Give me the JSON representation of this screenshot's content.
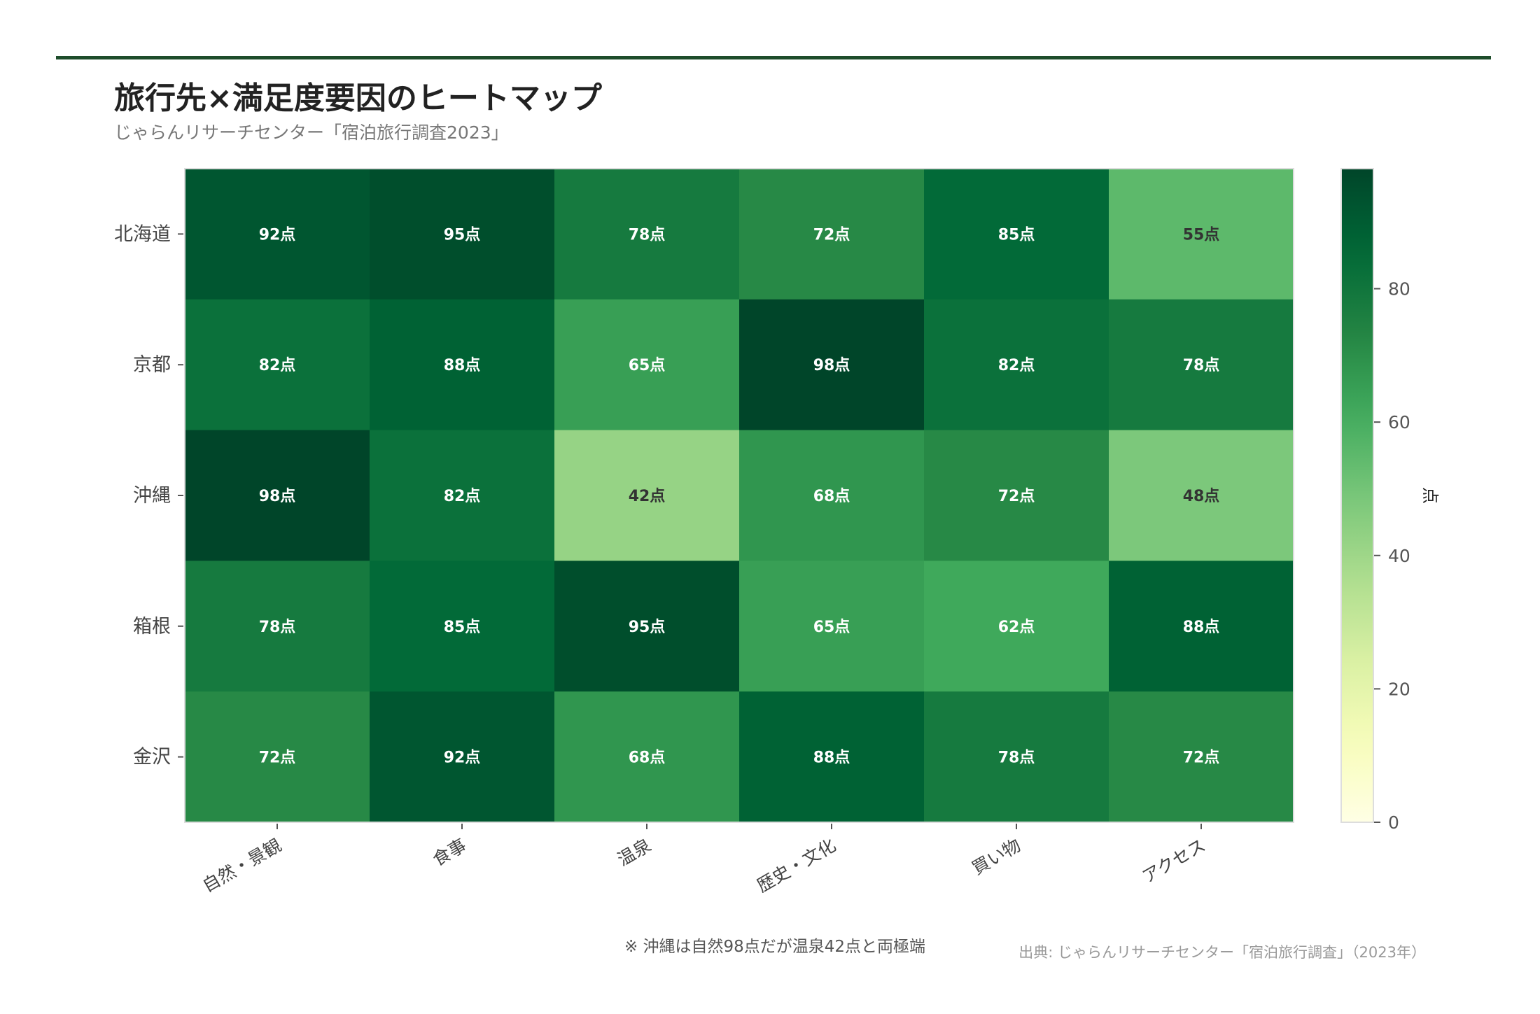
{
  "header": {
    "title": "旅行先×満足度要因のヒートマップ",
    "subtitle": "じゃらんリサーチセンター「宿泊旅行調査2023」"
  },
  "colors": {
    "accent_line": "#1e4d2b",
    "colormap": "YlGn"
  },
  "chart_data": {
    "type": "heatmap",
    "rows": [
      "北海道",
      "京都",
      "沖縄",
      "箱根",
      "金沢"
    ],
    "columns": [
      "自然・景観",
      "食事",
      "温泉",
      "歴史・文化",
      "買い物",
      "アクセス"
    ],
    "values": [
      [
        92,
        95,
        78,
        72,
        85,
        55
      ],
      [
        82,
        88,
        65,
        98,
        82,
        78
      ],
      [
        98,
        82,
        42,
        68,
        72,
        48
      ],
      [
        78,
        85,
        95,
        65,
        62,
        88
      ],
      [
        72,
        92,
        68,
        88,
        78,
        72
      ]
    ],
    "value_suffix": "点",
    "colorbar": {
      "label": "点",
      "range": [
        0,
        98
      ],
      "ticks": [
        0,
        20,
        40,
        60,
        80
      ]
    }
  },
  "footer": {
    "note": "※ 沖縄は自然98点だが温泉42点と両極端",
    "source": "出典: じゃらんリサーチセンター「宿泊旅行調査」（2023年）"
  }
}
